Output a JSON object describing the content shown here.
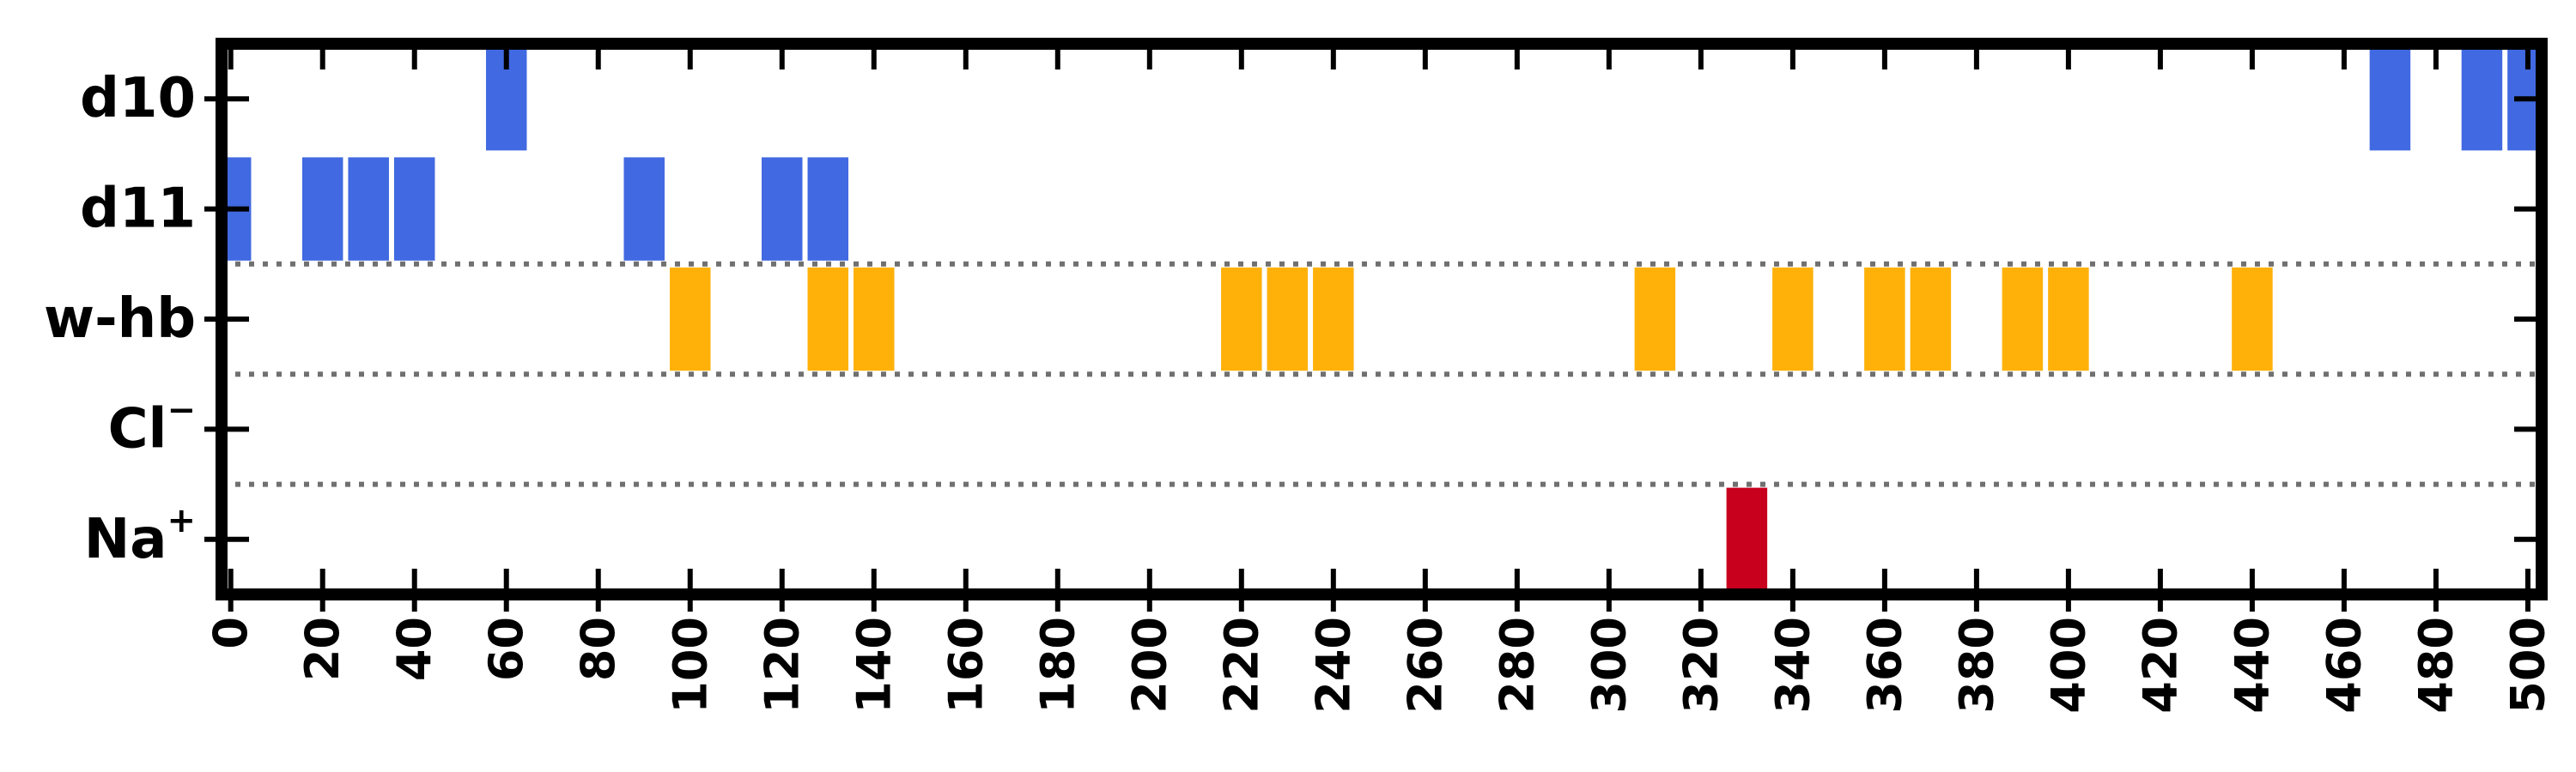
{
  "chart_data": {
    "type": "bar",
    "orientation": "horizontal-event-raster",
    "title": "",
    "xlabel": "",
    "ylabel": "",
    "xlim": [
      -2,
      503
    ],
    "x_ticks": [
      0,
      20,
      40,
      60,
      80,
      100,
      120,
      140,
      160,
      180,
      200,
      220,
      240,
      260,
      280,
      300,
      320,
      340,
      360,
      380,
      400,
      420,
      440,
      460,
      480,
      500
    ],
    "x_tick_rotation": "vertical",
    "bin_width": 10,
    "grid": false,
    "separators": "dotted-lines-between-groups",
    "rows": [
      {
        "label": "d10",
        "color": "#4169e1",
        "events": [
          60,
          470,
          490,
          500
        ]
      },
      {
        "label": "d11",
        "color": "#4169e1",
        "events": [
          0,
          20,
          30,
          40,
          90,
          120,
          130
        ]
      },
      {
        "label": "w-hb",
        "color": "#ffb10a",
        "events": [
          100,
          130,
          140,
          220,
          230,
          240,
          310,
          340,
          360,
          370,
          390,
          400,
          440
        ]
      },
      {
        "label": "Cl",
        "label_sup": "−",
        "color": "#c8001e",
        "events": []
      },
      {
        "label": "Na",
        "label_sup": "+",
        "color": "#c8001e",
        "events": [
          330
        ]
      }
    ]
  }
}
